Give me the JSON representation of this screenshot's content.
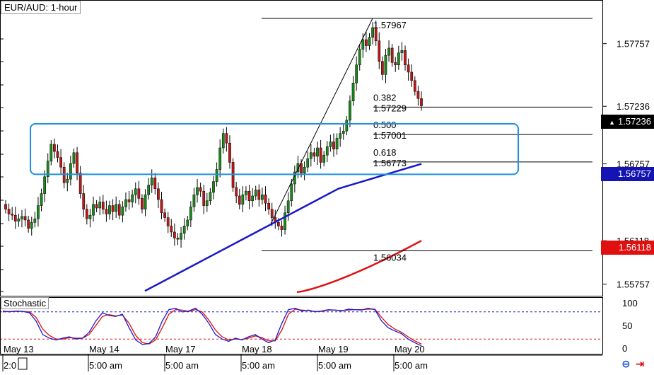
{
  "header": {
    "title": "EUR/AUD: 1-hour"
  },
  "indicator": {
    "name": "Stochastic"
  },
  "price_tags": {
    "current": "1.57236",
    "ma_blue": "1.56757",
    "ma_red": "1.56118"
  },
  "colors": {
    "bull": "#1a8a1a",
    "bear": "#c01818",
    "ma_blue": "#1818c8",
    "ma_red": "#e01010",
    "box": "#1e90e0",
    "stoch_k": "#1a1ad0",
    "stoch_d": "#e01010",
    "tag_current": "#000000",
    "tag_blue": "#1414b4",
    "tag_red": "#e01010"
  },
  "chart_data": {
    "type": "candlestick",
    "symbol": "EUR/AUD",
    "timeframe": "1-hour",
    "ylim": [
      1.5566,
      1.5812
    ],
    "y_ticks": [
      "1.57757",
      "1.57236",
      "1.56757",
      "1.56118",
      "1.55757"
    ],
    "x_ticks": [
      {
        "date": "May 13",
        "time": "2:0"
      },
      {
        "date": "May 14",
        "time": "5:00 am"
      },
      {
        "date": "May 17",
        "time": "5:00 am"
      },
      {
        "date": "May 18",
        "time": "5:00 am"
      },
      {
        "date": "May 19",
        "time": "5:00 am"
      },
      {
        "date": "May 20",
        "time": "5:00 am"
      }
    ],
    "closes": [
      1.5638,
      1.5634,
      1.5633,
      1.5628,
      1.563,
      1.5632,
      1.5629,
      1.5622,
      1.5627,
      1.563,
      1.5641,
      1.5651,
      1.5665,
      1.5678,
      1.5692,
      1.5686,
      1.5681,
      1.5673,
      1.566,
      1.5663,
      1.5676,
      1.5685,
      1.5668,
      1.5651,
      1.5638,
      1.563,
      1.5633,
      1.5642,
      1.5639,
      1.5644,
      1.5638,
      1.5634,
      1.5641,
      1.5636,
      1.5642,
      1.5633,
      1.564,
      1.5646,
      1.5644,
      1.565,
      1.5655,
      1.5647,
      1.5638,
      1.565,
      1.5658,
      1.5664,
      1.5655,
      1.5646,
      1.5635,
      1.5631,
      1.5624,
      1.5619,
      1.5614,
      1.5613,
      1.5618,
      1.5624,
      1.5629,
      1.564,
      1.565,
      1.5656,
      1.5653,
      1.5641,
      1.5645,
      1.5652,
      1.5661,
      1.5671,
      1.5689,
      1.5701,
      1.5693,
      1.5677,
      1.5656,
      1.5649,
      1.5642,
      1.565,
      1.5653,
      1.5645,
      1.5649,
      1.5654,
      1.5646,
      1.565,
      1.5643,
      1.5638,
      1.5631,
      1.5627,
      1.5624,
      1.5621,
      1.5635,
      1.5645,
      1.5659,
      1.5669,
      1.5676,
      1.5668,
      1.5673,
      1.568,
      1.5685,
      1.5682,
      1.5689,
      1.5677,
      1.5683,
      1.569,
      1.5694,
      1.5688,
      1.5697,
      1.5701,
      1.5703,
      1.5712,
      1.5728,
      1.5743,
      1.5758,
      1.5771,
      1.5779,
      1.5774,
      1.5781,
      1.5789,
      1.5778,
      1.5761,
      1.575,
      1.5766,
      1.5772,
      1.576,
      1.5758,
      1.5768,
      1.577,
      1.5758,
      1.5752,
      1.5745,
      1.5736,
      1.573,
      1.5724
    ],
    "fibonacci": {
      "high": "1.57967",
      "low": "1.56034",
      "levels": [
        {
          "ratio": "0.382",
          "price": "1.57229"
        },
        {
          "ratio": "0.500",
          "price": "1.57001"
        },
        {
          "ratio": "0.618",
          "price": "1.56773"
        }
      ]
    },
    "ma_blue": {
      "start": 1.557,
      "end": 1.56757
    },
    "ma_red": {
      "start": 1.5569,
      "end": 1.56118
    },
    "zone": {
      "top": 1.5709,
      "bottom": 1.5667
    },
    "stochastic": {
      "ylim": [
        0,
        100
      ],
      "y_ticks": [
        "100",
        "50",
        "0"
      ],
      "levels": [
        80,
        20
      ],
      "k": [
        82,
        80,
        82,
        81,
        78,
        60,
        30,
        22,
        18,
        22,
        25,
        20,
        22,
        35,
        60,
        78,
        72,
        70,
        75,
        45,
        18,
        8,
        10,
        25,
        60,
        85,
        88,
        80,
        82,
        88,
        75,
        55,
        30,
        20,
        15,
        22,
        18,
        25,
        30,
        20,
        12,
        18,
        55,
        85,
        88,
        82,
        84,
        80,
        82,
        85,
        84,
        82,
        86,
        85,
        84,
        88,
        85,
        60,
        45,
        38,
        32,
        20,
        12,
        5
      ],
      "d": [
        80,
        81,
        81,
        81,
        80,
        68,
        42,
        28,
        20,
        20,
        23,
        22,
        22,
        30,
        50,
        70,
        74,
        71,
        73,
        55,
        28,
        12,
        9,
        18,
        45,
        75,
        85,
        84,
        81,
        85,
        80,
        62,
        40,
        25,
        18,
        20,
        19,
        22,
        27,
        23,
        16,
        16,
        40,
        75,
        86,
        84,
        83,
        81,
        81,
        84,
        84,
        83,
        84,
        85,
        85,
        86,
        86,
        68,
        52,
        42,
        35,
        25,
        16,
        9
      ]
    }
  }
}
